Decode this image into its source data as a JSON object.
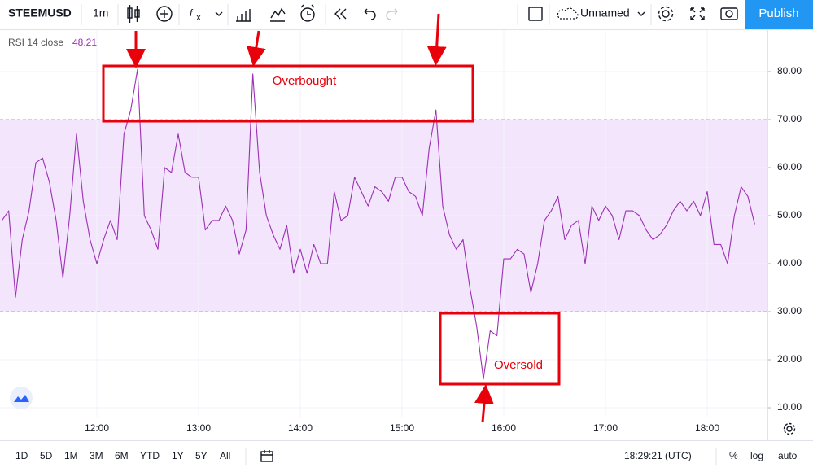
{
  "toolbar": {
    "symbol": "STEEMUSD",
    "interval": "1m",
    "layout_name": "Unnamed",
    "publish": "Publish"
  },
  "bottom_bar": {
    "ranges": [
      "1D",
      "5D",
      "1M",
      "3M",
      "6M",
      "YTD",
      "1Y",
      "5Y",
      "All"
    ],
    "clock": "18:29:21 (UTC)",
    "percent": "%",
    "log": "log",
    "auto": "auto"
  },
  "chart_data": {
    "type": "line",
    "legend_label": "RSI 14 close",
    "annotations": {
      "overbought": "Overbought",
      "oversold": "Oversold"
    },
    "band": {
      "low": 30,
      "high": 70,
      "color": "#f3e5fc",
      "line_color": "#b89cc6"
    },
    "grid": true,
    "x": [
      4,
      8,
      12,
      16,
      20,
      24,
      28,
      32,
      36,
      40,
      44,
      48,
      52,
      56,
      60,
      64,
      68,
      72,
      76,
      80,
      84,
      88,
      92,
      96,
      100,
      104,
      108,
      112,
      116,
      120,
      124,
      128,
      132,
      136,
      140,
      144,
      148,
      152,
      156,
      160,
      164,
      168,
      172,
      176,
      180,
      184,
      188,
      192,
      196,
      200,
      204,
      208,
      212,
      216,
      220,
      224,
      228,
      232,
      236,
      240,
      244,
      248,
      252,
      256,
      260,
      264,
      268,
      272,
      276,
      280,
      284,
      288,
      292,
      296,
      300,
      304,
      308,
      312,
      316,
      320,
      324,
      328,
      332,
      336,
      340,
      344,
      348,
      352,
      356,
      360,
      364,
      368,
      372,
      376,
      380,
      384,
      388,
      392,
      396,
      400,
      404,
      408,
      412,
      416,
      420,
      424,
      428,
      432,
      436,
      440,
      444,
      448
    ],
    "series": [
      {
        "name": "RSI 14 close",
        "color": "#9c2fb4",
        "values": [
          49,
          51,
          33,
          45,
          51,
          61,
          62,
          57,
          49,
          37,
          50,
          67,
          53,
          45,
          40,
          45,
          49,
          45,
          67,
          72,
          80.5,
          50,
          47,
          43,
          60,
          59,
          67,
          59,
          58,
          58,
          47,
          49,
          49,
          52,
          49,
          42,
          47,
          79.5,
          59,
          50,
          46,
          43,
          48,
          38,
          43,
          38,
          44,
          40,
          40,
          55,
          49,
          50,
          58,
          55,
          52,
          56,
          55,
          53,
          58,
          58,
          55,
          54,
          50,
          64,
          72,
          52,
          46,
          43,
          45,
          35,
          27,
          16,
          26,
          25,
          41,
          41,
          43,
          42,
          34,
          40,
          49,
          51,
          54,
          45,
          48,
          49,
          40,
          52,
          49,
          52,
          50,
          45,
          51,
          51,
          50,
          47,
          45,
          46,
          48,
          51,
          53,
          51,
          53,
          50,
          55,
          44,
          44,
          40,
          50,
          56,
          54,
          48.21
        ]
      }
    ],
    "xlim": [
      2.88,
      455.52
    ],
    "xticks": [
      {
        "value": 60,
        "label": "12:00"
      },
      {
        "value": 120,
        "label": "13:00"
      },
      {
        "value": 180,
        "label": "14:00"
      },
      {
        "value": 240,
        "label": "15:00"
      },
      {
        "value": 300,
        "label": "16:00"
      },
      {
        "value": 360,
        "label": "17:00"
      },
      {
        "value": 420,
        "label": "18:00"
      }
    ],
    "ylim": [
      8.14,
      88.64
    ],
    "yticks": [
      {
        "value": 10,
        "label": "10.00"
      },
      {
        "value": 20,
        "label": "20.00"
      },
      {
        "value": 30,
        "label": "30.00"
      },
      {
        "value": 40,
        "label": "40.00"
      },
      {
        "value": 50,
        "label": "50.00"
      },
      {
        "value": 60,
        "label": "60.00"
      },
      {
        "value": 70,
        "label": "70.00"
      },
      {
        "value": 80,
        "label": "80.00"
      }
    ]
  }
}
